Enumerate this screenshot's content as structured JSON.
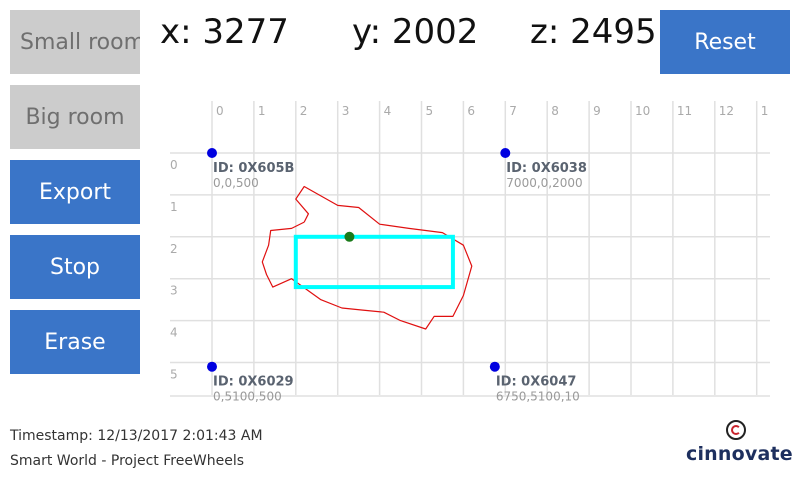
{
  "buttons": {
    "small_room": "Small room",
    "big_room": "Big room",
    "export": "Export",
    "stop": "Stop",
    "erase": "Erase",
    "reset": "Reset"
  },
  "coords": {
    "x": "x: 3277",
    "y": "y: 2002",
    "z": "z: 2495"
  },
  "grid": {
    "x_ticks": [
      "0",
      "1",
      "2",
      "3",
      "4",
      "5",
      "6",
      "7",
      "8",
      "9",
      "10",
      "11",
      "12",
      "1"
    ],
    "y_ticks": [
      "0",
      "1",
      "2",
      "3",
      "4",
      "5"
    ],
    "x_range": [
      0,
      13.5
    ],
    "y_range": [
      -0.9,
      6.1
    ]
  },
  "anchors": [
    {
      "id": "ID: 0X605B",
      "coords": "0,0,500",
      "x": 0,
      "y": 0
    },
    {
      "id": "ID: 0X6038",
      "coords": "7000,0,2000",
      "x": 7,
      "y": 0
    },
    {
      "id": "ID: 0X6029",
      "coords": "0,5100,500",
      "x": 0,
      "y": 5.1
    },
    {
      "id": "ID: 0X6047",
      "coords": "6750,5100,10",
      "x": 6.75,
      "y": 5.1
    }
  ],
  "room_rect": {
    "x1": 2.0,
    "y1": 2.0,
    "x2": 5.75,
    "y2": 3.2
  },
  "current_position": {
    "x": 3.28,
    "y": 2.0
  },
  "trail": [
    [
      2.2,
      1.65
    ],
    [
      1.9,
      1.8
    ],
    [
      1.4,
      1.85
    ],
    [
      1.35,
      2.2
    ],
    [
      1.2,
      2.6
    ],
    [
      1.3,
      2.9
    ],
    [
      1.45,
      3.2
    ],
    [
      1.9,
      3.0
    ],
    [
      2.6,
      3.5
    ],
    [
      3.1,
      3.7
    ],
    [
      3.6,
      3.75
    ],
    [
      4.1,
      3.8
    ],
    [
      4.5,
      4.0
    ],
    [
      5.1,
      4.2
    ],
    [
      5.3,
      3.9
    ],
    [
      5.75,
      3.9
    ],
    [
      6.0,
      3.4
    ],
    [
      6.2,
      2.7
    ],
    [
      6.0,
      2.2
    ],
    [
      5.5,
      1.9
    ],
    [
      4.7,
      1.8
    ],
    [
      4.0,
      1.7
    ],
    [
      3.5,
      1.3
    ],
    [
      3.0,
      1.25
    ],
    [
      2.2,
      0.8
    ],
    [
      2.0,
      1.1
    ],
    [
      2.3,
      1.45
    ],
    [
      2.2,
      1.65
    ]
  ],
  "colors": {
    "button_blue": "#3a75c8",
    "button_gray": "#cccccc",
    "anchor": "#0000e0",
    "rect": "#00ffff",
    "trail": "#e01010",
    "position": "#1a7a1a",
    "grid": "#e0e0e0"
  },
  "footer": {
    "timestamp": "Timestamp: 12/13/2017 2:01:43 AM",
    "project": "Smart World - Project FreeWheels"
  },
  "logo": {
    "text": "cinnovate"
  }
}
